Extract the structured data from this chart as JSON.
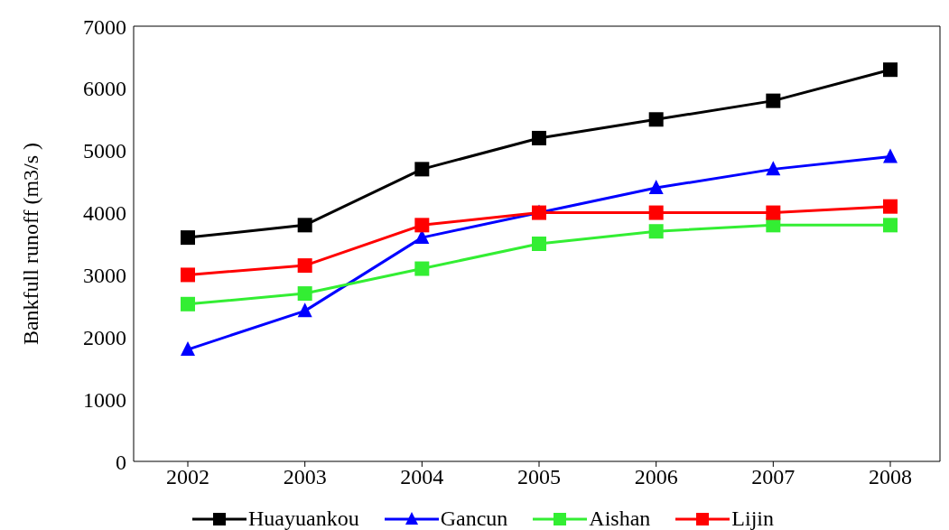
{
  "chart_data": {
    "type": "line",
    "ylabel": "Bankfull runoff (m3/s )",
    "categories": [
      "2002",
      "2003",
      "2004",
      "2005",
      "2006",
      "2007",
      "2008"
    ],
    "series": [
      {
        "name": "Huayuankou",
        "color": "#000000",
        "marker": "square",
        "values": [
          3600,
          3800,
          4700,
          5200,
          5500,
          5800,
          6300
        ]
      },
      {
        "name": "Gancun",
        "color": "#0000ff",
        "marker": "triangle",
        "values": [
          1800,
          2420,
          3600,
          4000,
          4400,
          4700,
          4900
        ]
      },
      {
        "name": "Aishan",
        "color": "#33ee33",
        "marker": "square",
        "values": [
          2530,
          2700,
          3100,
          3500,
          3700,
          3800,
          3800
        ]
      },
      {
        "name": "Lijin",
        "color": "#ff0000",
        "marker": "square",
        "values": [
          3000,
          3150,
          3800,
          4000,
          4000,
          4000,
          4100
        ]
      }
    ],
    "ylim": [
      0,
      7000
    ],
    "yticks": [
      0,
      1000,
      2000,
      3000,
      4000,
      5000,
      6000,
      7000
    ],
    "grid": false,
    "legend": "bottom",
    "line_style": "solid"
  }
}
